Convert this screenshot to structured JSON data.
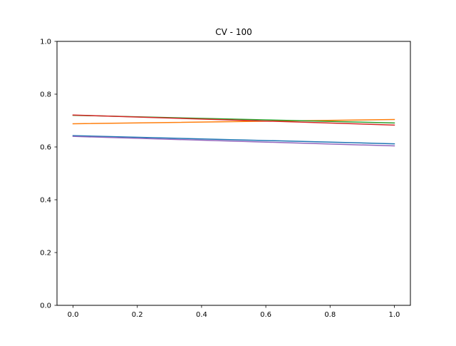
{
  "chart_data": {
    "type": "line",
    "title": "CV - 100",
    "xlabel": "",
    "ylabel": "",
    "xlim": [
      -0.05,
      1.05
    ],
    "ylim": [
      0.0,
      1.0
    ],
    "xticks": [
      0.0,
      0.2,
      0.4,
      0.6,
      0.8,
      1.0
    ],
    "xtick_labels": [
      "0.0",
      "0.2",
      "0.4",
      "0.6",
      "0.8",
      "1.0"
    ],
    "yticks": [
      0.0,
      0.2,
      0.4,
      0.6,
      0.8,
      1.0
    ],
    "ytick_labels": [
      "0.0",
      "0.2",
      "0.4",
      "0.6",
      "0.8",
      "1.0"
    ],
    "grid": false,
    "legend": "none",
    "x": [
      0.0,
      1.0
    ],
    "series": [
      {
        "color": "#1f77b4",
        "values": [
          0.643,
          0.612
        ]
      },
      {
        "color": "#ff7f0e",
        "values": [
          0.688,
          0.704
        ]
      },
      {
        "color": "#2ca02c",
        "values": [
          0.72,
          0.691
        ]
      },
      {
        "color": "#d62728",
        "values": [
          0.721,
          0.683
        ]
      },
      {
        "color": "#9467bd",
        "values": [
          0.64,
          0.604
        ]
      }
    ]
  }
}
